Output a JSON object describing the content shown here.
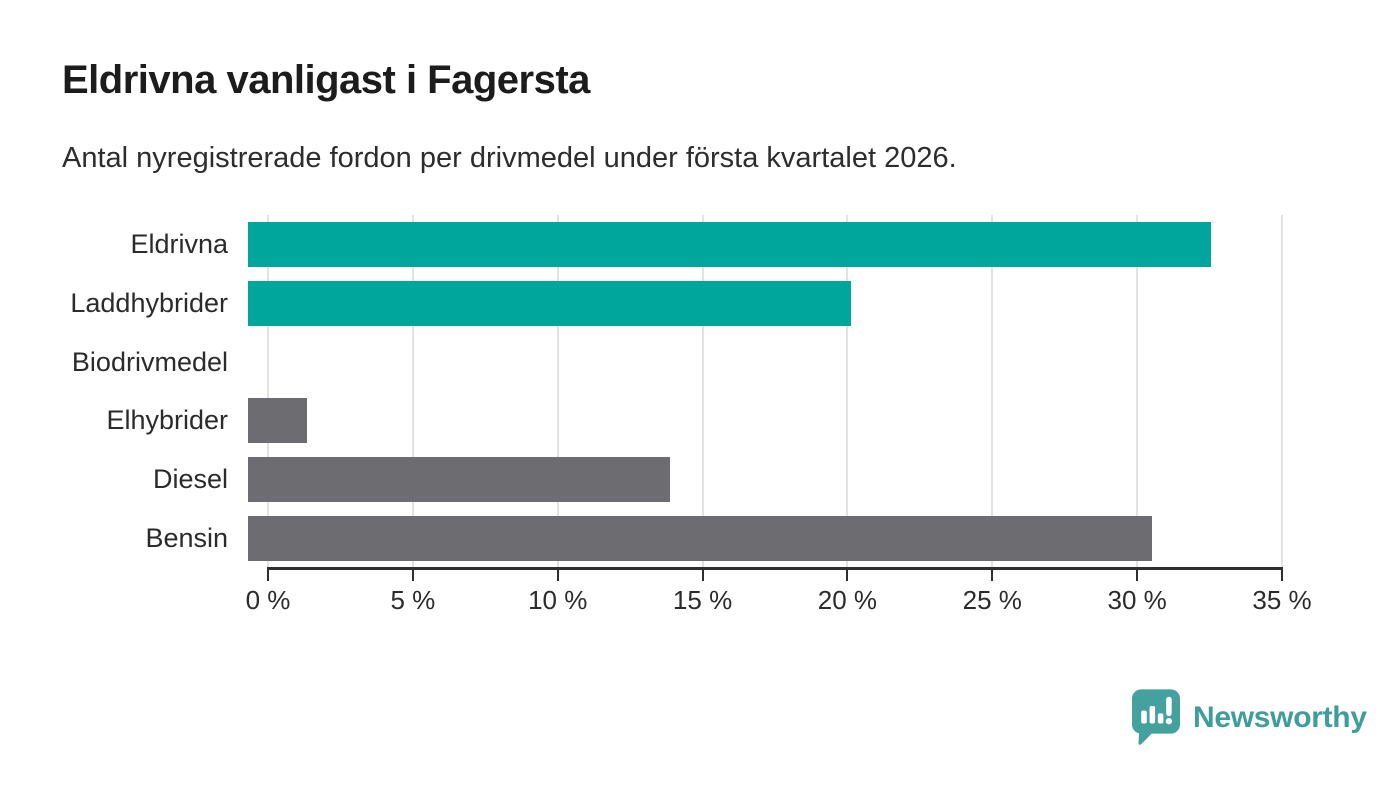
{
  "chart_data": {
    "type": "bar",
    "orientation": "horizontal",
    "title": "Eldrivna vanligast i Fagersta",
    "subtitle": "Antal nyregistrerade fordon per drivmedel under första kvartalet 2026.",
    "categories": [
      "Eldrivna",
      "Laddhybrider",
      "Biodrivmedel",
      "Elhybrider",
      "Diesel",
      "Bensin"
    ],
    "values": [
      32.6,
      20.4,
      0,
      2.0,
      14.3,
      30.6
    ],
    "unit": "%",
    "xlim": [
      0,
      35
    ],
    "x_ticks": [
      "0 %",
      "5 %",
      "10 %",
      "15 %",
      "20 %",
      "25 %",
      "30 %",
      "35 %"
    ],
    "bar_colors": [
      "#00a69c",
      "#00a69c",
      "#6c6c71",
      "#6c6c71",
      "#6c6c71",
      "#6c6c71"
    ],
    "grid": "vertical",
    "legend": "none",
    "colors": {
      "highlight": "#00a69c",
      "default": "#6c6c71",
      "gridline": "#e2e2e2",
      "axis": "#2f2f2f"
    }
  },
  "branding": {
    "logo_text": "Newsworthy",
    "logo_color": "#3f9e9b",
    "logo_icon": "bar-chart-speech-bubble"
  }
}
